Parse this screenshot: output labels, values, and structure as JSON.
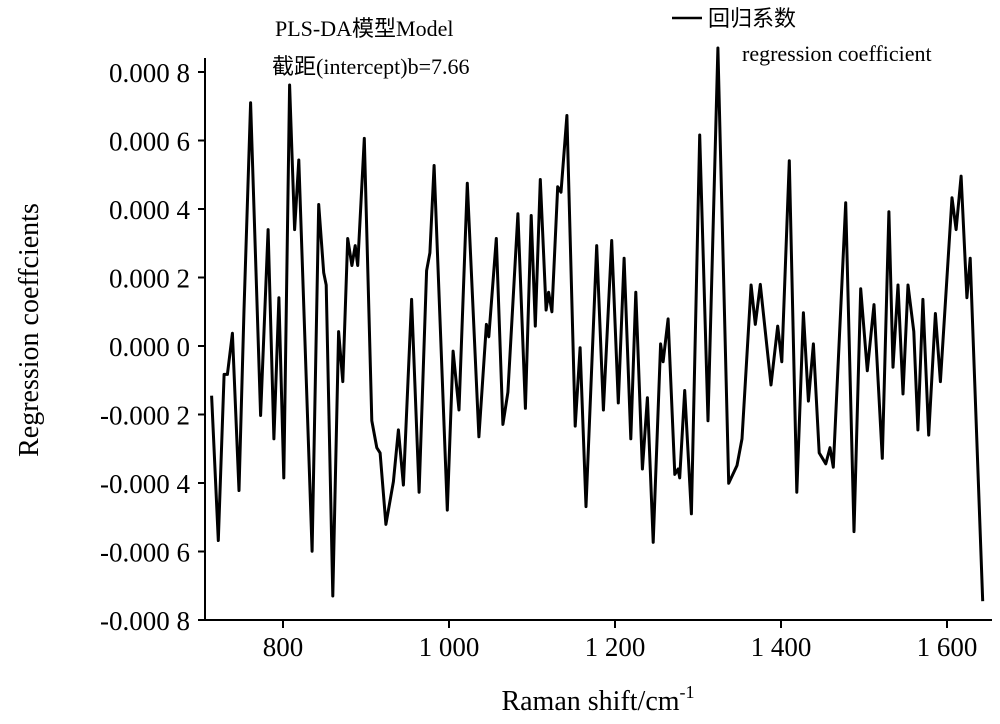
{
  "chart_data": {
    "type": "line",
    "title": "",
    "xlabel": "Raman shift/cm",
    "xlabel_superscript": "-1",
    "ylabel": "Regression coeffcients",
    "xlim": [
      701,
      1655
    ],
    "ylim": [
      -0.0008,
      0.0008
    ],
    "grid": false,
    "xticks": [
      800,
      1000,
      1200,
      1400,
      1600
    ],
    "xtick_labels": [
      "800",
      "1 000",
      "1 200",
      "1 400",
      "1 600"
    ],
    "yticks": [
      0.0008,
      0.0006,
      0.0004,
      0.0002,
      0,
      -0.0002,
      -0.0004,
      -0.0006,
      -0.0008
    ],
    "ytick_labels": [
      "0.000 8",
      "0.000 6",
      "0.000 4",
      "0.000 2",
      "0.000 0",
      "-0.000 2",
      "-0.000 4",
      "-0.000 6",
      "-0.000 8"
    ],
    "annotations": [
      "PLS-DA模型Model",
      "截距(intercept)b=7.66"
    ],
    "legend": {
      "placement": "top-right",
      "entries": [
        "回归系数",
        "regression coefficient"
      ]
    },
    "series": [
      {
        "name": "回归系数 regression coefficient",
        "color": "#000000",
        "x": [
          714,
          722,
          729,
          733,
          739,
          747,
          753,
          761,
          773,
          782,
          789,
          795,
          801,
          808,
          814,
          819,
          835,
          843,
          849,
          852,
          860,
          867,
          872,
          878,
          883,
          887,
          890,
          898,
          907,
          913,
          917,
          924,
          933,
          939,
          945,
          955,
          964,
          973,
          977,
          982,
          998,
          1005,
          1012,
          1022,
          1036,
          1045,
          1048,
          1057,
          1065,
          1071,
          1083,
          1092,
          1099,
          1104,
          1110,
          1117,
          1120,
          1124,
          1131,
          1135,
          1142,
          1152,
          1158,
          1165,
          1178,
          1186,
          1196,
          1204,
          1211,
          1219,
          1225,
          1233,
          1239,
          1246,
          1255,
          1258,
          1264,
          1272,
          1276,
          1278,
          1284,
          1292,
          1302,
          1312,
          1324,
          1337,
          1347,
          1353,
          1364,
          1369,
          1375,
          1388,
          1396,
          1401,
          1410,
          1419,
          1427,
          1433,
          1439,
          1446,
          1454,
          1459,
          1463,
          1478,
          1488,
          1496,
          1504,
          1512,
          1522,
          1530,
          1535,
          1541,
          1547,
          1553,
          1560,
          1565,
          1571,
          1578,
          1586,
          1592,
          1606,
          1611,
          1617,
          1624,
          1628,
          1643
        ],
        "y": [
          -0.000145,
          -0.000568,
          -8.3e-05,
          -8.3e-05,
          3.7e-05,
          -0.000422,
          0.000105,
          0.00071,
          -0.000203,
          0.00034,
          -0.000271,
          0.000141,
          -0.000385,
          0.000762,
          0.00034,
          0.000543,
          -0.000599,
          0.000413,
          0.000214,
          0.000178,
          -0.00073,
          4.2e-05,
          -0.000104,
          0.000314,
          0.000235,
          0.000293,
          0.000235,
          0.000606,
          -0.000218,
          -0.000297,
          -0.000312,
          -0.000521,
          -0.000396,
          -0.000245,
          -0.000406,
          0.000136,
          -0.000427,
          0.00022,
          0.000272,
          0.000527,
          -0.000479,
          -1.5e-05,
          -0.000187,
          0.000475,
          -0.000265,
          6.3e-05,
          2.7e-05,
          0.000314,
          -0.000229,
          -0.000135,
          0.000386,
          -0.000182,
          0.000381,
          5.8e-05,
          0.000486,
          0.000105,
          0.000157,
          0.0001,
          0.000465,
          0.000449,
          0.000673,
          -0.000234,
          -5e-06,
          -0.000469,
          0.000293,
          -0.000187,
          0.000308,
          -0.000166,
          0.000256,
          -0.000271,
          0.000157,
          -0.000359,
          -0.000151,
          -0.000573,
          6e-06,
          -4.6e-05,
          7.9e-05,
          -0.000375,
          -0.000359,
          -0.000385,
          -0.00013,
          -0.00049,
          0.000616,
          -0.000218,
          0.00087,
          -0.000401,
          -0.000349,
          -0.000271,
          0.000178,
          6.3e-05,
          0.00018,
          -0.000114,
          5.8e-05,
          -4.6e-05,
          0.000541,
          -0.000427,
          9.7e-05,
          -0.000161,
          6e-06,
          -0.000312,
          -0.000344,
          -0.000297,
          -0.000354,
          0.000418,
          -0.000542,
          0.000167,
          -7.2e-05,
          0.000121,
          -0.000328,
          0.000392,
          -6.2e-05,
          0.000178,
          -0.00014,
          0.000178,
          4.2e-05,
          -0.000245,
          0.000136,
          -0.00026,
          9.5e-05,
          -0.000104,
          0.000433,
          0.00034,
          0.000496,
          0.000141,
          0.000256,
          -0.000745
        ]
      }
    ]
  }
}
